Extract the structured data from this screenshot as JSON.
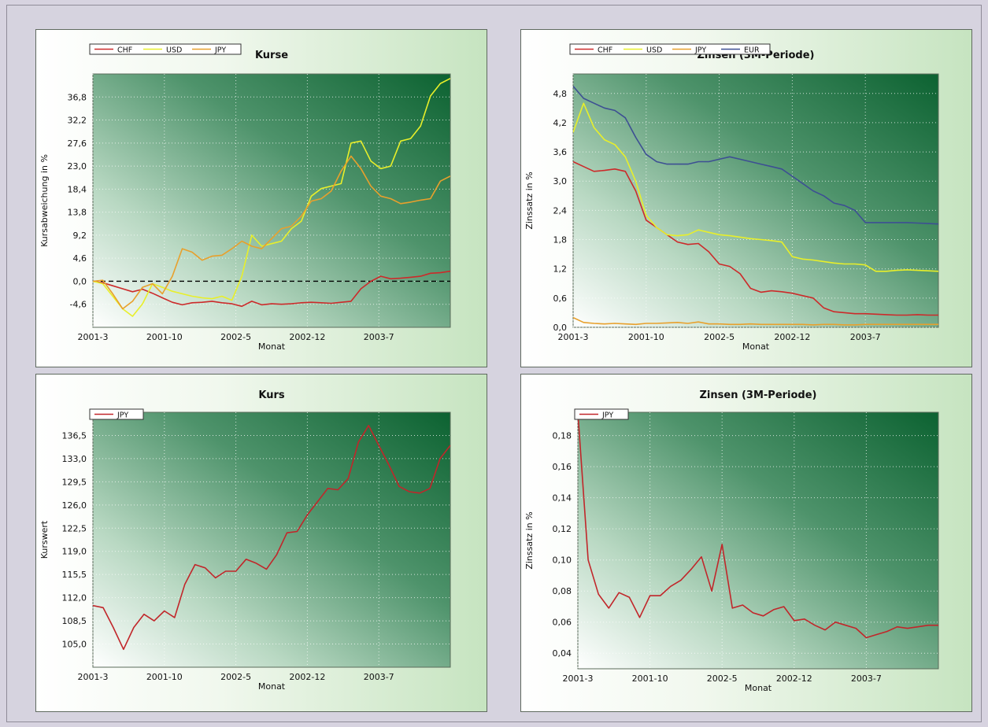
{
  "colors": {
    "CHF": "#cc2a2a",
    "USD": "#e8ef2a",
    "JPY": "#e8a02c",
    "EUR": "#3d4f93",
    "JPY_single": "#c1262a",
    "zero_line": "#000000"
  },
  "chart_data": [
    {
      "type": "line",
      "title": "Kurse",
      "xlabel": "Monat",
      "ylabel": "Kursabweichung in %",
      "x_ticks": [
        "2001-3",
        "2001-10",
        "2002-5",
        "2002-12",
        "2003-7"
      ],
      "x_range": [
        "2001-3",
        "2004-2"
      ],
      "y_ticks": [
        "-4,6",
        "0,0",
        "4,6",
        "9,2",
        "13,8",
        "18,4",
        "23,0",
        "27,6",
        "32,2",
        "36,8"
      ],
      "ylim": [
        -9.2,
        41.4
      ],
      "grid": true,
      "legend": "top-left",
      "zero_line": true,
      "series": [
        {
          "name": "CHF",
          "values": [
            0.0,
            -0.3,
            -0.9,
            -1.5,
            -2.1,
            -1.6,
            -2.4,
            -3.3,
            -4.2,
            -4.7,
            -4.3,
            -4.2,
            -4.0,
            -4.3,
            -4.5,
            -5.0,
            -4.0,
            -4.7,
            -4.5,
            -4.6,
            -4.5,
            -4.3,
            -4.2,
            -4.3,
            -4.4,
            -4.2,
            -4.0,
            -1.5,
            0.0,
            1.0,
            0.5,
            0.6,
            0.8,
            1.0,
            1.6,
            1.7,
            2.0
          ]
        },
        {
          "name": "USD",
          "values": [
            0.0,
            -0.5,
            -3.0,
            -5.5,
            -7.0,
            -4.5,
            -0.5,
            -1.2,
            -2.0,
            -2.5,
            -3.0,
            -3.3,
            -3.5,
            -3.0,
            -3.8,
            1.0,
            9.2,
            7.0,
            7.5,
            8.0,
            10.5,
            12.0,
            17.0,
            18.5,
            19.0,
            19.5,
            27.6,
            28.0,
            24.0,
            22.5,
            23.0,
            28.0,
            28.5,
            31.0,
            37.0,
            39.5,
            40.5
          ]
        },
        {
          "name": "JPY",
          "values": [
            0.0,
            0.2,
            -2.5,
            -5.5,
            -4.0,
            -1.2,
            -0.5,
            -2.5,
            1.0,
            6.5,
            5.8,
            4.2,
            5.0,
            5.2,
            6.5,
            8.0,
            7.0,
            6.5,
            8.5,
            10.5,
            11.0,
            13.0,
            16.0,
            16.5,
            18.0,
            22.0,
            25.0,
            22.5,
            19.0,
            17.0,
            16.5,
            15.5,
            15.8,
            16.2,
            16.5,
            20.0,
            21.0
          ]
        }
      ]
    },
    {
      "type": "line",
      "title": "Zinsen (3M-Periode)",
      "xlabel": "Monat",
      "ylabel": "Zinssatz in %",
      "x_ticks": [
        "2001-3",
        "2001-10",
        "2002-5",
        "2002-12",
        "2003-7"
      ],
      "x_range": [
        "2001-3",
        "2004-2"
      ],
      "y_ticks": [
        "0,0",
        "0,6",
        "1,2",
        "1,8",
        "2,4",
        "3,0",
        "3,6",
        "4,2",
        "4,8"
      ],
      "ylim": [
        0.0,
        5.2
      ],
      "grid": true,
      "legend": "top-left",
      "series": [
        {
          "name": "CHF",
          "values": [
            3.4,
            3.3,
            3.2,
            3.22,
            3.25,
            3.2,
            2.8,
            2.2,
            2.05,
            1.9,
            1.75,
            1.7,
            1.72,
            1.55,
            1.3,
            1.25,
            1.1,
            0.8,
            0.72,
            0.75,
            0.73,
            0.7,
            0.65,
            0.6,
            0.4,
            0.32,
            0.3,
            0.28,
            0.28,
            0.27,
            0.26,
            0.25,
            0.25,
            0.26,
            0.25,
            0.25
          ]
        },
        {
          "name": "USD",
          "values": [
            4.0,
            4.6,
            4.1,
            3.85,
            3.75,
            3.5,
            3.0,
            2.3,
            2.05,
            1.9,
            1.88,
            1.9,
            2.0,
            1.95,
            1.9,
            1.88,
            1.85,
            1.82,
            1.8,
            1.78,
            1.75,
            1.45,
            1.4,
            1.38,
            1.35,
            1.32,
            1.3,
            1.3,
            1.28,
            1.15,
            1.15,
            1.17,
            1.18,
            1.17,
            1.16,
            1.15
          ]
        },
        {
          "name": "JPY",
          "values": [
            0.2,
            0.1,
            0.08,
            0.07,
            0.08,
            0.07,
            0.06,
            0.08,
            0.08,
            0.09,
            0.1,
            0.08,
            0.11,
            0.07,
            0.07,
            0.06,
            0.06,
            0.07,
            0.06,
            0.06,
            0.06,
            0.06,
            0.06,
            0.05,
            0.06,
            0.06,
            0.05,
            0.05,
            0.06,
            0.06,
            0.06,
            0.06,
            0.06,
            0.06,
            0.06,
            0.06
          ]
        },
        {
          "name": "EUR",
          "values": [
            4.95,
            4.7,
            4.6,
            4.5,
            4.45,
            4.3,
            3.9,
            3.55,
            3.4,
            3.35,
            3.35,
            3.35,
            3.4,
            3.4,
            3.45,
            3.5,
            3.45,
            3.4,
            3.35,
            3.3,
            3.25,
            3.1,
            2.95,
            2.8,
            2.7,
            2.55,
            2.5,
            2.4,
            2.15,
            2.15,
            2.15,
            2.15,
            2.15,
            2.14,
            2.13,
            2.12
          ]
        }
      ]
    },
    {
      "type": "line",
      "title": "Kurs",
      "xlabel": "Monat",
      "ylabel": "Kurswert",
      "x_ticks": [
        "2001-3",
        "2001-10",
        "2002-5",
        "2002-12",
        "2003-7"
      ],
      "x_range": [
        "2001-3",
        "2004-2"
      ],
      "y_ticks": [
        "105,0",
        "108,5",
        "112,0",
        "115,5",
        "119,0",
        "122,5",
        "126,0",
        "129,5",
        "133,0",
        "136,5"
      ],
      "ylim": [
        101.5,
        140.0
      ],
      "grid": true,
      "legend": "top-left",
      "series": [
        {
          "name": "JPY",
          "color": "#c1262a",
          "values": [
            110.8,
            110.5,
            107.5,
            104.2,
            107.5,
            109.5,
            108.5,
            110.0,
            109.0,
            114.0,
            117.0,
            116.5,
            115.0,
            116.0,
            116.0,
            117.8,
            117.2,
            116.3,
            118.5,
            121.8,
            122.0,
            124.5,
            126.5,
            128.5,
            128.3,
            130.0,
            135.5,
            138.0,
            135.0,
            132.0,
            128.8,
            128.0,
            127.8,
            128.5,
            133.0,
            135.0
          ]
        }
      ]
    },
    {
      "type": "line",
      "title": "Zinsen (3M-Periode)",
      "xlabel": "Monat",
      "ylabel": "Zinssatz in %",
      "x_ticks": [
        "2001-3",
        "2001-10",
        "2002-5",
        "2002-12",
        "2003-7"
      ],
      "x_range": [
        "2001-3",
        "2004-2"
      ],
      "y_ticks": [
        "0,04",
        "0,06",
        "0,08",
        "0,10",
        "0,12",
        "0,14",
        "0,16",
        "0,18"
      ],
      "ylim": [
        0.03,
        0.195
      ],
      "grid": true,
      "legend": "top-left",
      "series": [
        {
          "name": "JPY",
          "color": "#c1262a",
          "values": [
            0.195,
            0.1,
            0.078,
            0.069,
            0.079,
            0.076,
            0.063,
            0.077,
            0.077,
            0.083,
            0.087,
            0.094,
            0.102,
            0.08,
            0.11,
            0.069,
            0.071,
            0.066,
            0.064,
            0.068,
            0.07,
            0.061,
            0.062,
            0.058,
            0.055,
            0.06,
            0.058,
            0.056,
            0.05,
            0.052,
            0.054,
            0.057,
            0.056,
            0.057,
            0.058,
            0.058
          ]
        }
      ]
    }
  ]
}
